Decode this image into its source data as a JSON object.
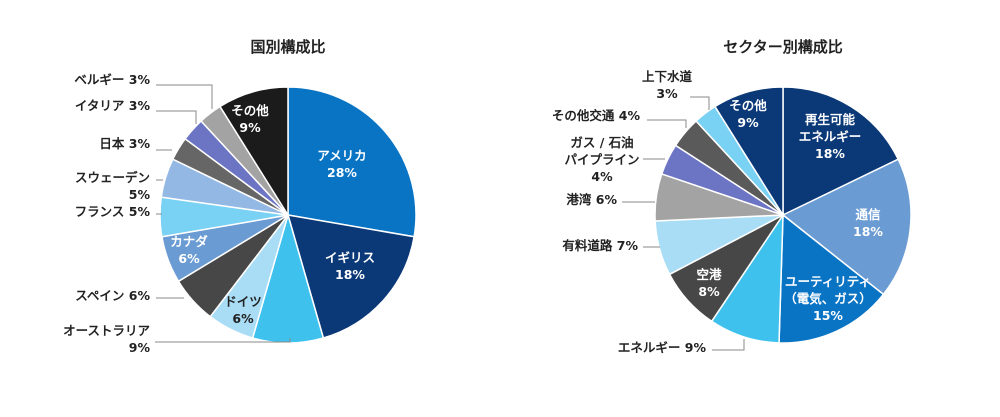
{
  "chart_data": [
    {
      "type": "pie",
      "title": "国別構成比",
      "slices": [
        {
          "label": [
            "アメリカ",
            "28%"
          ],
          "value": 28,
          "color": "#0a74c4",
          "label_color": "#ffffff"
        },
        {
          "label": [
            "イギリス",
            "18%"
          ],
          "value": 18,
          "color": "#0b3877",
          "label_color": "#ffffff"
        },
        {
          "label": [
            "オーストラリア",
            "9%"
          ],
          "value": 9,
          "color": "#3fc1ee",
          "label_color": "#ffffff"
        },
        {
          "label": [
            "ドイツ",
            "6%"
          ],
          "value": 6,
          "color": "#a9ddf6",
          "label_color": "#222222"
        },
        {
          "label": [
            "スペイン 6%"
          ],
          "value": 6,
          "color": "#474747",
          "label_color": "#ffffff"
        },
        {
          "label": [
            "カナダ",
            "6%"
          ],
          "value": 6,
          "color": "#6b9bd3",
          "label_color": "#ffffff"
        },
        {
          "label": [
            "フランス 5%"
          ],
          "value": 5,
          "color": "#79d1f4",
          "label_color": "#222222"
        },
        {
          "label": [
            "スウェーデン",
            "5%"
          ],
          "value": 5,
          "color": "#93b8e4",
          "label_color": "#222222"
        },
        {
          "label": [
            "日本 3%"
          ],
          "value": 3,
          "color": "#666666",
          "label_color": "#222222"
        },
        {
          "label": [
            "イタリア 3%"
          ],
          "value": 3,
          "color": "#6c74c4",
          "label_color": "#222222"
        },
        {
          "label": [
            "ベルギー 3%"
          ],
          "value": 3,
          "color": "#a3a3a3",
          "label_color": "#222222"
        },
        {
          "label": [
            "その他",
            "9%"
          ],
          "value": 9,
          "color": "#1b1b1b",
          "label_color": "#ffffff"
        }
      ]
    },
    {
      "type": "pie",
      "title": "セクター別構成比",
      "slices": [
        {
          "label": [
            "再生可能",
            "エネルギー",
            "18%"
          ],
          "value": 18,
          "color": "#0b3877",
          "label_color": "#ffffff"
        },
        {
          "label": [
            "通信",
            "18%"
          ],
          "value": 18,
          "color": "#6b9bd3",
          "label_color": "#ffffff"
        },
        {
          "label": [
            "ユーティリティ",
            "（電気、ガス）",
            "15%"
          ],
          "value": 15,
          "color": "#0a74c4",
          "label_color": "#ffffff"
        },
        {
          "label": [
            "エネルギー 9%"
          ],
          "value": 9,
          "color": "#3fc1ee",
          "label_color": "#222222"
        },
        {
          "label": [
            "空港",
            "8%"
          ],
          "value": 8,
          "color": "#474747",
          "label_color": "#ffffff"
        },
        {
          "label": [
            "有料道路 7%"
          ],
          "value": 7,
          "color": "#a9ddf6",
          "label_color": "#222222"
        },
        {
          "label": [
            "港湾 6%"
          ],
          "value": 6,
          "color": "#a3a3a3",
          "label_color": "#222222"
        },
        {
          "label": [
            "ガス / 石油",
            "パイプライン",
            "4%"
          ],
          "value": 4,
          "color": "#6c74c4",
          "label_color": "#222222"
        },
        {
          "label": [
            "その他交通 4%"
          ],
          "value": 4,
          "color": "#5a5a5a",
          "label_color": "#222222"
        },
        {
          "label": [
            "上下水道",
            "3%"
          ],
          "value": 3,
          "color": "#79d1f4",
          "label_color": "#222222"
        },
        {
          "label": [
            "その他",
            "9%"
          ],
          "value": 9,
          "color": "#0b3877",
          "label_color": "#ffffff"
        }
      ]
    }
  ]
}
